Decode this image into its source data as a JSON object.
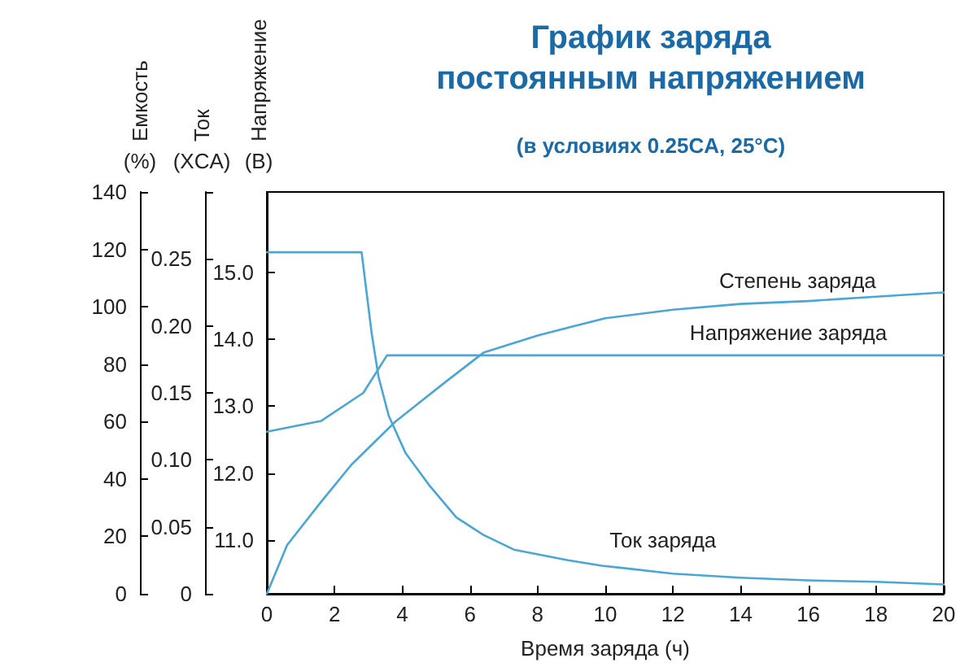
{
  "chart_data": {
    "type": "line",
    "title": "График заряда постоянным напряжением",
    "subtitle": "(в условиях 0.25CA, 25°C)",
    "xlabel": "Время заряда (ч)",
    "ylabel": "Напряжение (В)",
    "y2label": "Ток (XCA)",
    "y3label": "Емкость (%)",
    "xlim": [
      0,
      20
    ],
    "xticks": [
      0,
      2,
      4,
      6,
      8,
      10,
      12,
      14,
      16,
      18,
      20
    ],
    "ylim": [
      10.2,
      16.2
    ],
    "yticks": [
      {
        "value": 11,
        "label": "11.0"
      },
      {
        "value": 12,
        "label": "12.0"
      },
      {
        "value": 13,
        "label": "13.0"
      },
      {
        "value": 14,
        "label": "14.0"
      },
      {
        "value": 15,
        "label": "15.0"
      }
    ],
    "y2lim": [
      0,
      0.3
    ],
    "y2ticks": [
      0,
      0.05,
      {
        "value": 0.1,
        "label": "0.10"
      },
      0.15,
      {
        "value": 0.2,
        "label": "0.20"
      },
      0.25,
      {
        "value": 0.3,
        "label": null
      }
    ],
    "y3lim": [
      0,
      140
    ],
    "y3ticks": [
      0,
      20,
      40,
      60,
      80,
      100,
      120,
      140
    ],
    "marker": "none",
    "series": [
      {
        "name": "Степень заряда",
        "color": "#49a6d6",
        "axis": "y3",
        "x": [
          0,
          0.6,
          1.6,
          2.5,
          3.8,
          5.3,
          6.4,
          8,
          9,
          10,
          12,
          14,
          16,
          18,
          20
        ],
        "values": [
          0,
          17,
          32,
          45,
          60,
          74,
          84,
          90,
          93,
          96,
          99,
          101,
          102,
          103.5,
          105
        ]
      },
      {
        "name": "Напряжение заряда",
        "color": "#49a6d6",
        "x": [
          0,
          1.6,
          2.85,
          3.55,
          20
        ],
        "values": [
          12.62,
          12.78,
          13.2,
          13.76,
          13.76
        ]
      },
      {
        "name": "Ток заряда",
        "color": "#49a6d6",
        "axis": "y2",
        "x": [
          0,
          2.8,
          3.1,
          3.3,
          3.6,
          4.1,
          4.8,
          5.6,
          6.4,
          7.3,
          8.9,
          9.9,
          12,
          14,
          16,
          18,
          20
        ],
        "values": [
          0.255,
          0.255,
          0.194,
          0.162,
          0.133,
          0.105,
          0.081,
          0.057,
          0.044,
          0.033,
          0.025,
          0.021,
          0.015,
          0.012,
          0.01,
          0.009,
          0.007
        ]
      }
    ]
  }
}
